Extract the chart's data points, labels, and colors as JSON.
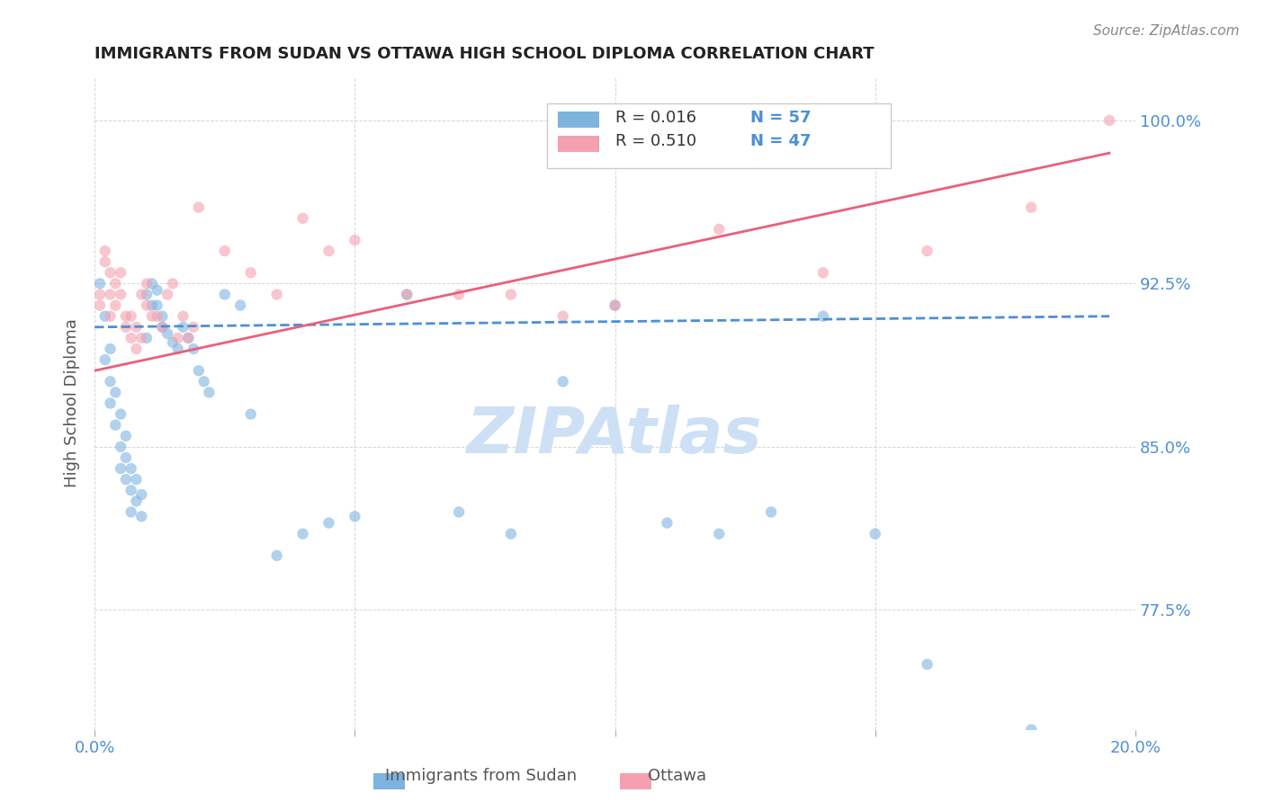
{
  "title": "IMMIGRANTS FROM SUDAN VS OTTAWA HIGH SCHOOL DIPLOMA CORRELATION CHART",
  "source": "Source: ZipAtlas.com",
  "ylabel": "High School Diploma",
  "ytick_labels": [
    "100.0%",
    "92.5%",
    "85.0%",
    "77.5%"
  ],
  "ytick_values": [
    1.0,
    0.925,
    0.85,
    0.775
  ],
  "xmin": 0.0,
  "xmax": 0.2,
  "ymin": 0.72,
  "ymax": 1.02,
  "legend_blue_r": "R = 0.016",
  "legend_blue_n": "N = 57",
  "legend_pink_r": "R = 0.510",
  "legend_pink_n": "N = 47",
  "legend_label_blue": "Immigrants from Sudan",
  "legend_label_pink": "Ottawa",
  "blue_color": "#7eb3e0",
  "pink_color": "#f4a0b0",
  "blue_line_color": "#4a90d9",
  "pink_line_color": "#e8607a",
  "title_color": "#222222",
  "axis_label_color": "#4a90d9",
  "watermark_color": "#cde0f5",
  "blue_scatter_x": [
    0.001,
    0.002,
    0.002,
    0.003,
    0.003,
    0.003,
    0.004,
    0.004,
    0.005,
    0.005,
    0.005,
    0.006,
    0.006,
    0.006,
    0.007,
    0.007,
    0.007,
    0.008,
    0.008,
    0.009,
    0.009,
    0.01,
    0.01,
    0.011,
    0.011,
    0.012,
    0.012,
    0.013,
    0.013,
    0.014,
    0.015,
    0.016,
    0.017,
    0.018,
    0.019,
    0.02,
    0.021,
    0.022,
    0.025,
    0.028,
    0.03,
    0.035,
    0.04,
    0.045,
    0.05,
    0.06,
    0.07,
    0.08,
    0.09,
    0.1,
    0.11,
    0.12,
    0.13,
    0.14,
    0.15,
    0.16,
    0.18
  ],
  "blue_scatter_y": [
    0.925,
    0.91,
    0.89,
    0.895,
    0.88,
    0.87,
    0.875,
    0.86,
    0.865,
    0.85,
    0.84,
    0.855,
    0.845,
    0.835,
    0.84,
    0.83,
    0.82,
    0.835,
    0.825,
    0.828,
    0.818,
    0.9,
    0.92,
    0.915,
    0.925,
    0.922,
    0.915,
    0.91,
    0.905,
    0.902,
    0.898,
    0.895,
    0.905,
    0.9,
    0.895,
    0.885,
    0.88,
    0.875,
    0.92,
    0.915,
    0.865,
    0.8,
    0.81,
    0.815,
    0.818,
    0.92,
    0.82,
    0.81,
    0.88,
    0.915,
    0.815,
    0.81,
    0.82,
    0.91,
    0.81,
    0.75,
    0.72
  ],
  "pink_scatter_x": [
    0.001,
    0.001,
    0.002,
    0.002,
    0.003,
    0.003,
    0.003,
    0.004,
    0.004,
    0.005,
    0.005,
    0.006,
    0.006,
    0.007,
    0.007,
    0.008,
    0.008,
    0.009,
    0.009,
    0.01,
    0.01,
    0.011,
    0.012,
    0.013,
    0.014,
    0.015,
    0.016,
    0.017,
    0.018,
    0.019,
    0.02,
    0.025,
    0.03,
    0.035,
    0.04,
    0.045,
    0.05,
    0.06,
    0.07,
    0.08,
    0.09,
    0.1,
    0.12,
    0.14,
    0.16,
    0.18,
    0.195
  ],
  "pink_scatter_y": [
    0.92,
    0.915,
    0.935,
    0.94,
    0.93,
    0.92,
    0.91,
    0.925,
    0.915,
    0.93,
    0.92,
    0.905,
    0.91,
    0.9,
    0.91,
    0.905,
    0.895,
    0.9,
    0.92,
    0.915,
    0.925,
    0.91,
    0.91,
    0.905,
    0.92,
    0.925,
    0.9,
    0.91,
    0.9,
    0.905,
    0.96,
    0.94,
    0.93,
    0.92,
    0.955,
    0.94,
    0.945,
    0.92,
    0.92,
    0.92,
    0.91,
    0.915,
    0.95,
    0.93,
    0.94,
    0.96,
    1.0
  ],
  "blue_trend_x": [
    0.0,
    0.195
  ],
  "blue_trend_y": [
    0.905,
    0.91
  ],
  "pink_trend_x": [
    0.0,
    0.195
  ],
  "pink_trend_y": [
    0.885,
    0.985
  ],
  "marker_size": 80,
  "marker_alpha": 0.6,
  "line_width": 2.0
}
